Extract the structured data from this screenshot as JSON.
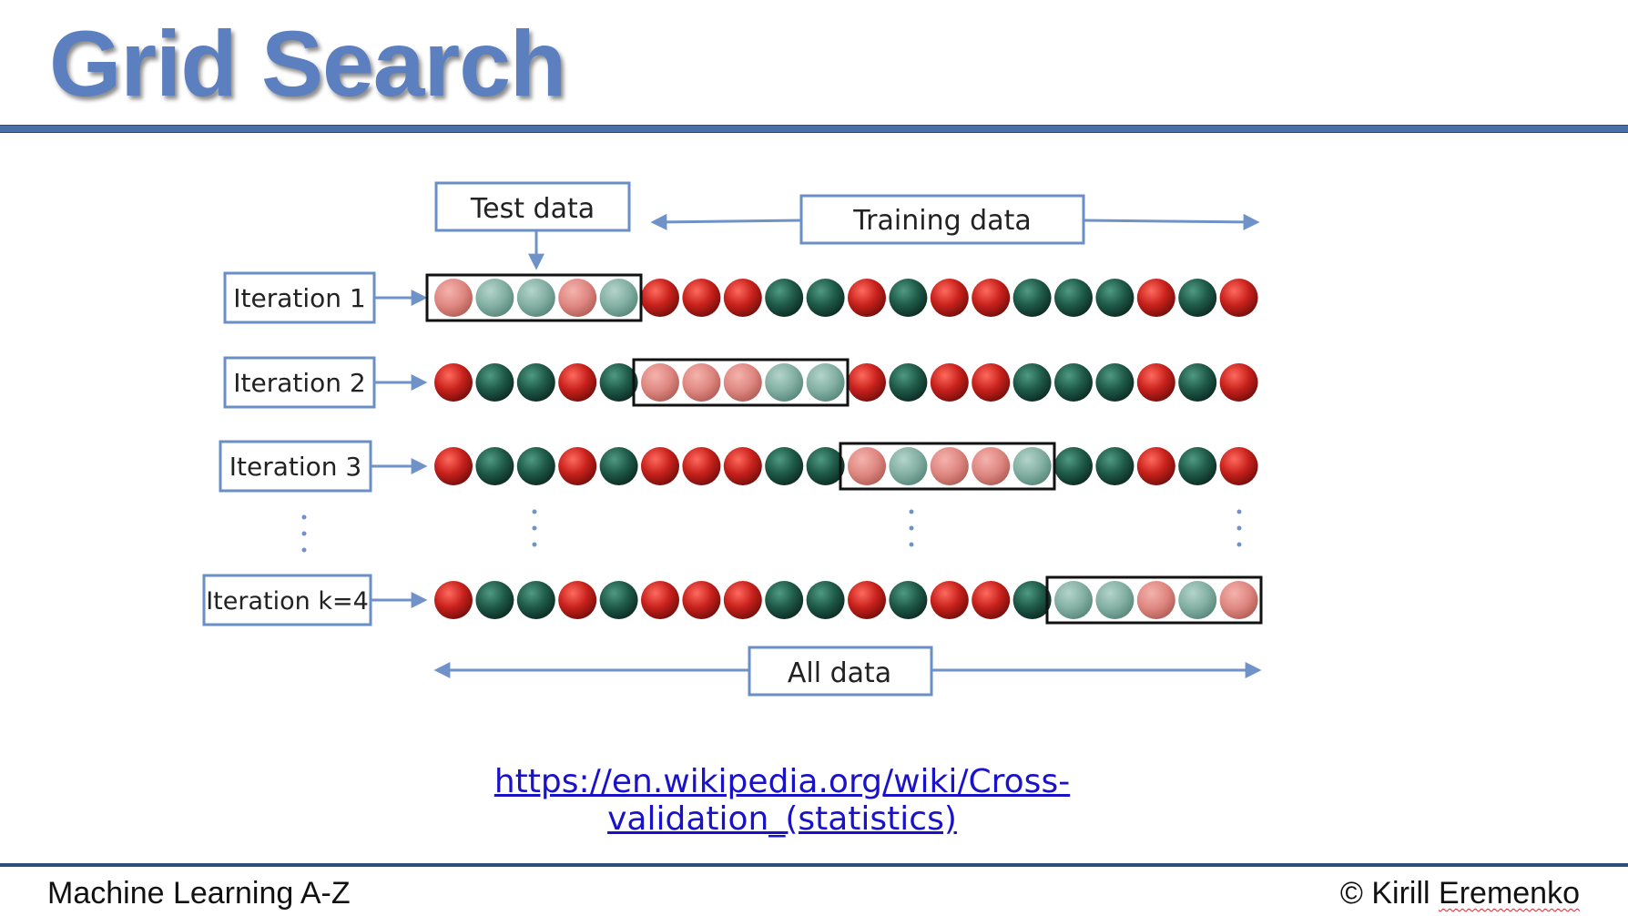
{
  "slide": {
    "title": "Grid Search",
    "link_text": "https://en.wikipedia.org/wiki/Cross-validation_(statistics)",
    "footer_left": "Machine Learning A-Z",
    "footer_copyright": "© Kirill ",
    "footer_author_surname": "Eremenko"
  },
  "diagram": {
    "test_label": "Test data",
    "training_label": "Training data",
    "all_label": "All data",
    "iterations": [
      {
        "label": "Iteration 1",
        "test_start": 0,
        "balls": "RGGRGRRRGGRGRRGGGRGR"
      },
      {
        "label": "Iteration 2",
        "test_start": 5,
        "balls": "RGGRGRRRGGRGRRGGGRGR"
      },
      {
        "label": "Iteration 3",
        "test_start": 10,
        "balls": "RGGRGRRRGGRGRRGGGRGR"
      },
      {
        "label": "Iteration k=4",
        "test_start": 15,
        "balls": "RGGRGRRRGGRGRRGGGRGR"
      }
    ],
    "colors": {
      "red": "#c8211c",
      "green": "#1f5a48",
      "faded_red": "#de8680",
      "faded_green": "#82aea2",
      "box_border": "#6a8fc6",
      "arrow": "#6f93c9"
    }
  }
}
